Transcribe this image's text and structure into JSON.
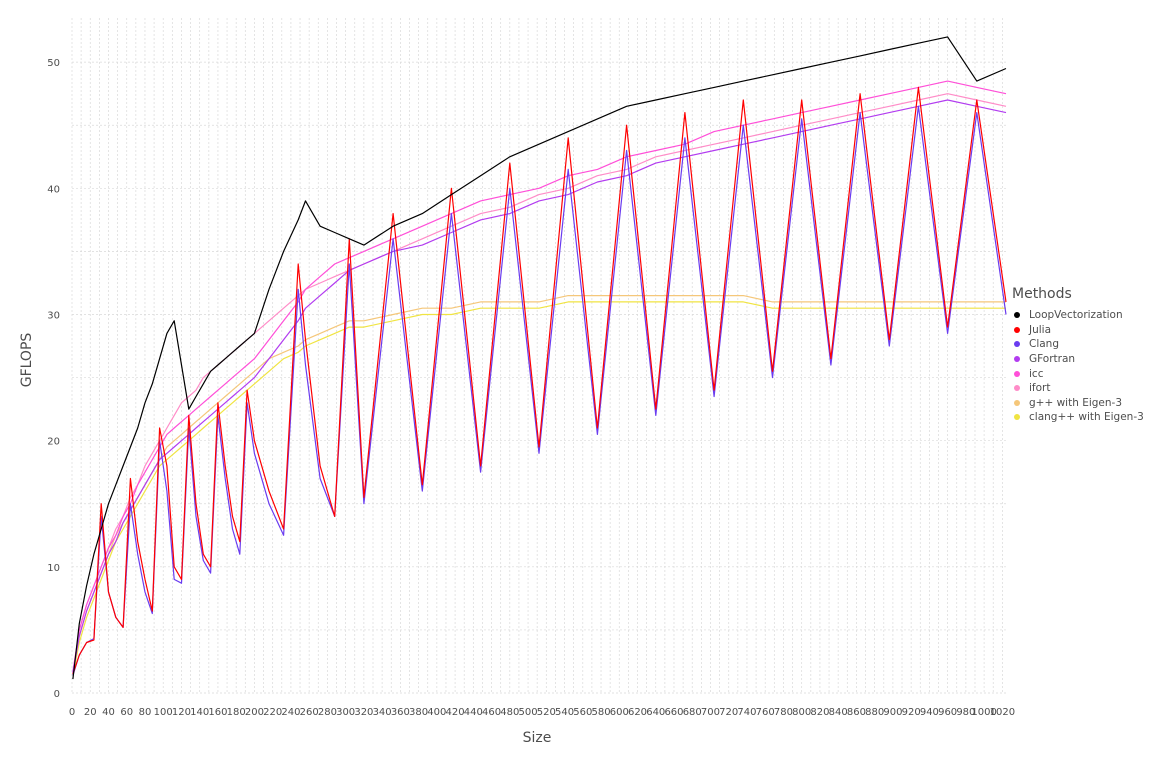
{
  "chart_data": {
    "type": "line",
    "title": "",
    "xlabel": "Size",
    "ylabel": "GFLOPS",
    "xlim": [
      0,
      1024
    ],
    "ylim": [
      0,
      53.5
    ],
    "grid": true,
    "legend_title": "Methods",
    "legend_position": "right",
    "x_ticks": [
      0,
      20,
      40,
      60,
      80,
      100,
      120,
      140,
      160,
      180,
      200,
      220,
      240,
      260,
      280,
      300,
      320,
      340,
      360,
      380,
      400,
      420,
      440,
      460,
      480,
      500,
      520,
      540,
      560,
      580,
      600,
      620,
      640,
      660,
      680,
      700,
      720,
      740,
      760,
      780,
      800,
      820,
      840,
      860,
      880,
      900,
      920,
      940,
      960,
      980,
      1000,
      1020
    ],
    "x_tick_labels": [
      "0",
      "20",
      "40",
      "60",
      "80",
      "100",
      "120",
      "140",
      "160",
      "180",
      "200",
      "220",
      "240",
      "260",
      "280",
      "300",
      "320",
      "340",
      "360",
      "380",
      "400",
      "420",
      "440",
      "460",
      "480",
      "500",
      "520",
      "540",
      "560",
      "580",
      "600",
      "620",
      "640",
      "660",
      "680",
      "700",
      "720",
      "740",
      "760",
      "780",
      "800",
      "820",
      "840",
      "860",
      "880",
      "900",
      "920",
      "940",
      "960",
      "980",
      "1000",
      "1020"
    ],
    "y_ticks": [
      0,
      10,
      20,
      30,
      40,
      50
    ],
    "y_tick_labels": [
      "0",
      "10",
      "20",
      "30",
      "40",
      "50"
    ],
    "x": [
      1,
      8,
      16,
      24,
      32,
      40,
      48,
      56,
      64,
      72,
      80,
      88,
      96,
      104,
      112,
      120,
      128,
      136,
      144,
      152,
      160,
      168,
      176,
      184,
      192,
      200,
      216,
      232,
      248,
      256,
      272,
      288,
      304,
      320,
      352,
      384,
      416,
      448,
      480,
      512,
      544,
      576,
      608,
      640,
      672,
      704,
      736,
      768,
      800,
      832,
      864,
      896,
      928,
      960,
      992,
      1024
    ],
    "series": [
      {
        "name": "LoopVectorization",
        "color": "#000000",
        "values": [
          1.1,
          5.5,
          8.5,
          11.0,
          13.0,
          15.0,
          16.5,
          18.0,
          19.5,
          21.0,
          23.0,
          24.5,
          26.5,
          28.5,
          29.5,
          26.0,
          22.5,
          23.5,
          24.5,
          25.5,
          26.0,
          26.5,
          27.0,
          27.5,
          28.0,
          28.5,
          32.0,
          35.0,
          37.5,
          39.0,
          37.0,
          36.5,
          36.0,
          35.5,
          37.0,
          38.0,
          39.5,
          41.0,
          42.5,
          43.5,
          44.5,
          45.5,
          46.5,
          47.0,
          47.5,
          48.0,
          48.5,
          49.0,
          49.5,
          50.0,
          50.5,
          51.0,
          51.5,
          52.0,
          48.5,
          49.5
        ]
      },
      {
        "name": "Julia",
        "color": "#ff0000",
        "values": [
          1.5,
          3.0,
          4.0,
          4.2,
          15.0,
          8.0,
          6.0,
          5.2,
          17.0,
          12.0,
          9.0,
          6.5,
          21.0,
          18.0,
          10.0,
          9.0,
          22.0,
          15.0,
          11.0,
          10.0,
          23.0,
          18.0,
          14.0,
          12.0,
          24.0,
          20.0,
          16.0,
          13.0,
          34.0,
          28.0,
          18.0,
          14.0,
          36.0,
          15.5,
          38.0,
          16.5,
          40.0,
          18.0,
          42.0,
          19.5,
          44.0,
          21.0,
          45.0,
          22.5,
          46.0,
          24.0,
          47.0,
          25.5,
          47.0,
          26.5,
          47.5,
          28.0,
          48.0,
          29.0,
          47.0,
          31.0
        ]
      },
      {
        "name": "Clang",
        "color": "#6a3cf0",
        "values": [
          1.4,
          3.0,
          4.0,
          4.3,
          14.0,
          8.0,
          6.0,
          5.2,
          15.0,
          11.0,
          8.0,
          6.3,
          20.0,
          16.0,
          9.0,
          8.7,
          21.0,
          14.0,
          10.5,
          9.5,
          22.0,
          17.0,
          13.0,
          11.0,
          23.0,
          19.0,
          15.0,
          12.5,
          32.0,
          26.0,
          17.0,
          14.0,
          34.0,
          15.0,
          36.0,
          16.0,
          38.0,
          17.5,
          40.0,
          19.0,
          41.5,
          20.5,
          43.0,
          22.0,
          44.0,
          23.5,
          45.0,
          25.0,
          45.5,
          26.0,
          46.0,
          27.5,
          46.5,
          28.5,
          46.0,
          30.0
        ]
      },
      {
        "name": "GFortran",
        "color": "#b23cf0",
        "values": [
          1.6,
          4.5,
          6.5,
          8.0,
          9.5,
          11.0,
          12.0,
          13.5,
          14.5,
          15.5,
          16.5,
          17.5,
          18.5,
          19.0,
          19.5,
          20.0,
          20.5,
          21.0,
          21.5,
          22.0,
          22.5,
          23.0,
          23.5,
          24.0,
          24.5,
          25.0,
          26.5,
          28.0,
          29.5,
          30.5,
          31.5,
          32.5,
          33.5,
          34.0,
          35.0,
          35.5,
          36.5,
          37.5,
          38.0,
          39.0,
          39.5,
          40.5,
          41.0,
          42.0,
          42.5,
          43.0,
          43.5,
          44.0,
          44.5,
          45.0,
          45.5,
          46.0,
          46.5,
          47.0,
          46.5,
          46.0
        ]
      },
      {
        "name": "icc",
        "color": "#ff4fd8",
        "values": [
          1.7,
          5.0,
          7.0,
          8.5,
          10.0,
          11.5,
          12.5,
          14.0,
          15.0,
          16.5,
          17.5,
          18.5,
          19.5,
          20.5,
          21.0,
          21.5,
          22.0,
          22.5,
          23.0,
          23.5,
          24.0,
          24.5,
          25.0,
          25.5,
          26.0,
          26.5,
          28.0,
          29.5,
          31.0,
          32.0,
          33.0,
          34.0,
          34.5,
          35.0,
          36.0,
          37.0,
          38.0,
          39.0,
          39.5,
          40.0,
          41.0,
          41.5,
          42.5,
          43.0,
          43.5,
          44.5,
          45.0,
          45.5,
          46.0,
          46.5,
          47.0,
          47.5,
          48.0,
          48.5,
          48.0,
          47.5
        ]
      },
      {
        "name": "ifort",
        "color": "#ff8cc8",
        "values": [
          1.6,
          5.0,
          7.0,
          8.5,
          10.0,
          11.5,
          13.0,
          14.0,
          15.5,
          16.5,
          18.0,
          19.0,
          20.0,
          21.0,
          22.0,
          23.0,
          23.5,
          24.0,
          25.0,
          25.5,
          26.0,
          26.5,
          27.0,
          27.5,
          28.0,
          28.5,
          29.5,
          30.5,
          31.5,
          32.0,
          32.5,
          33.0,
          33.5,
          34.0,
          35.0,
          36.0,
          37.0,
          38.0,
          38.5,
          39.5,
          40.0,
          41.0,
          41.5,
          42.5,
          43.0,
          43.5,
          44.0,
          44.5,
          45.0,
          45.5,
          46.0,
          46.5,
          47.0,
          47.5,
          47.0,
          46.5
        ]
      },
      {
        "name": "g++ with Eigen-3",
        "color": "#f5c77a",
        "values": [
          1.5,
          4.5,
          6.5,
          8.0,
          9.5,
          11.0,
          12.5,
          13.5,
          14.5,
          15.5,
          16.5,
          17.5,
          18.5,
          19.5,
          20.0,
          20.5,
          21.0,
          21.5,
          22.0,
          22.5,
          23.0,
          23.5,
          24.0,
          24.5,
          25.0,
          25.5,
          26.5,
          27.0,
          27.5,
          28.0,
          28.5,
          29.0,
          29.5,
          29.5,
          30.0,
          30.5,
          30.5,
          31.0,
          31.0,
          31.0,
          31.5,
          31.5,
          31.5,
          31.5,
          31.5,
          31.5,
          31.5,
          31.0,
          31.0,
          31.0,
          31.0,
          31.0,
          31.0,
          31.0,
          31.0,
          31.0
        ]
      },
      {
        "name": "clang++ with Eigen-3",
        "color": "#f0e442",
        "values": [
          1.4,
          4.0,
          6.0,
          7.5,
          9.0,
          10.5,
          12.0,
          13.0,
          14.0,
          15.0,
          16.0,
          17.0,
          18.0,
          18.5,
          19.0,
          19.5,
          20.0,
          20.5,
          21.0,
          21.5,
          22.0,
          22.5,
          23.0,
          23.5,
          24.0,
          24.5,
          25.5,
          26.5,
          27.0,
          27.5,
          28.0,
          28.5,
          29.0,
          29.0,
          29.5,
          30.0,
          30.0,
          30.5,
          30.5,
          30.5,
          31.0,
          31.0,
          31.0,
          31.0,
          31.0,
          31.0,
          31.0,
          30.5,
          30.5,
          30.5,
          30.5,
          30.5,
          30.5,
          30.5,
          30.5,
          30.5
        ]
      }
    ]
  }
}
